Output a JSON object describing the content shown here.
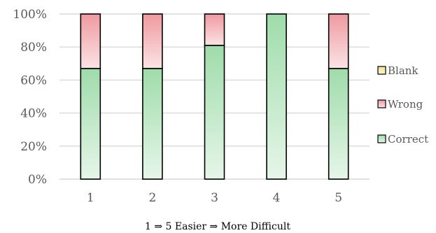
{
  "chart_data": {
    "type": "bar",
    "stacked": true,
    "percent": true,
    "categories": [
      "1",
      "2",
      "3",
      "4",
      "5"
    ],
    "series": [
      {
        "name": "Correct",
        "values": [
          67,
          67,
          81,
          100,
          67
        ],
        "color_top": "#9fdcaa",
        "color_bottom": "#e6f6e9"
      },
      {
        "name": "Wrong",
        "values": [
          33,
          33,
          19,
          0,
          33
        ],
        "color_top": "#ef9a9f",
        "color_bottom": "#fbe3e5"
      },
      {
        "name": "Blank",
        "values": [
          0,
          0,
          0,
          0,
          0
        ],
        "color_top": "#f8df8e",
        "color_bottom": "#fdf4d2"
      }
    ],
    "y_ticks": [
      "0%",
      "20%",
      "40%",
      "60%",
      "80%",
      "100%"
    ],
    "ylim": [
      0,
      100
    ],
    "xlabel": "1  ⇒ 5      Easier ⇒ More Difficult",
    "legend_position": "right",
    "grid": true
  }
}
